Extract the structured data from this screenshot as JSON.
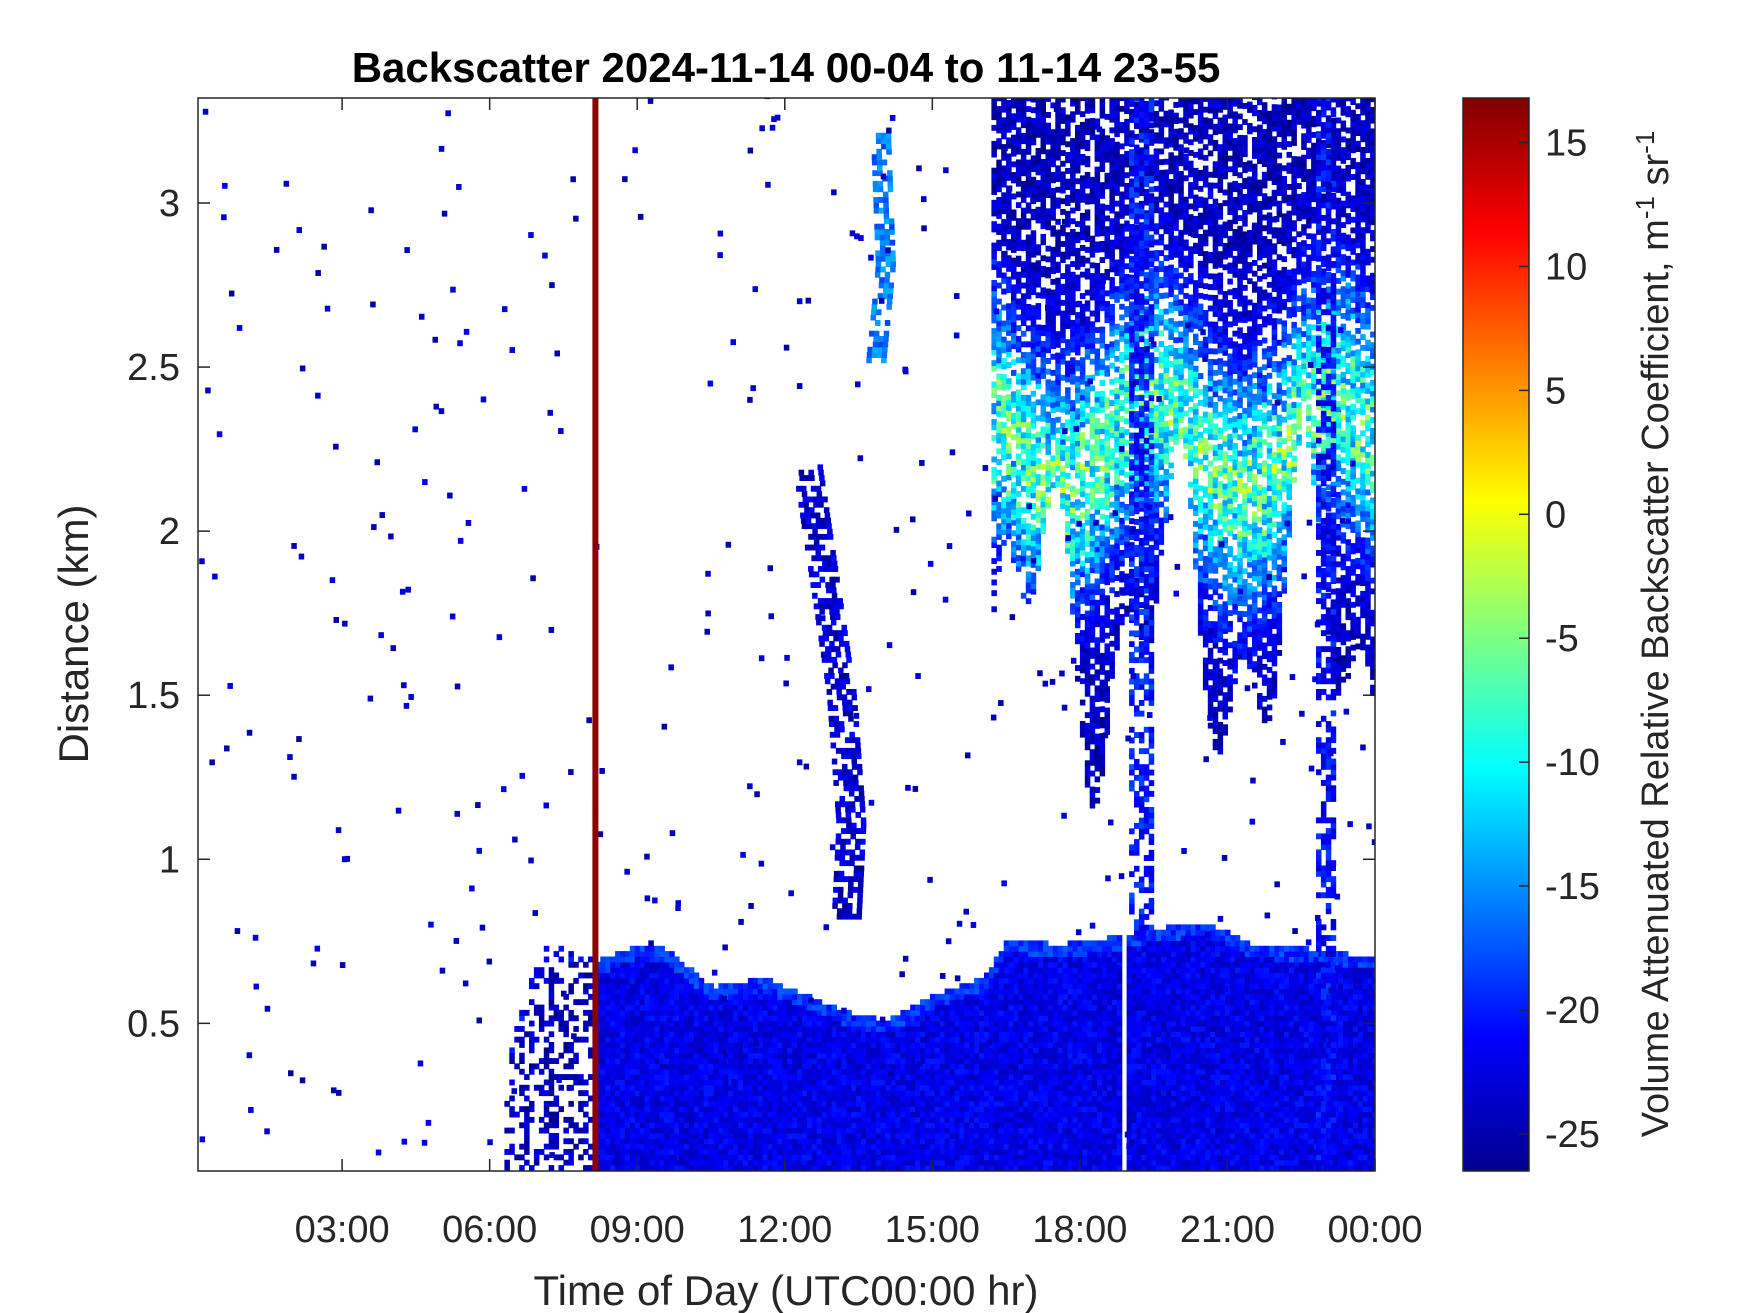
{
  "chart_data": {
    "type": "heatmap",
    "title": "Backscatter 2024-11-14 00-04 to 11-14 23-55",
    "xlabel": "Time of Day (UTC00:00 hr)",
    "ylabel": "Distance (km)",
    "xlim_hours": [
      0.07,
      24.0
    ],
    "ylim_km": [
      0.05,
      3.32
    ],
    "x_ticks": [
      {
        "value": 3,
        "label": "03:00"
      },
      {
        "value": 6,
        "label": "06:00"
      },
      {
        "value": 9,
        "label": "09:00"
      },
      {
        "value": 12,
        "label": "12:00"
      },
      {
        "value": 15,
        "label": "15:00"
      },
      {
        "value": 18,
        "label": "18:00"
      },
      {
        "value": 21,
        "label": "21:00"
      },
      {
        "value": 24,
        "label": "00:00"
      }
    ],
    "y_ticks": [
      {
        "value": 0.5,
        "label": "0.5"
      },
      {
        "value": 1,
        "label": "1"
      },
      {
        "value": 1.5,
        "label": "1.5"
      },
      {
        "value": 2,
        "label": "2"
      },
      {
        "value": 2.5,
        "label": "2.5"
      },
      {
        "value": 3,
        "label": "3"
      }
    ],
    "colorbar": {
      "label_main": "Volume Attenuated Relative Backscatter Coefficient, m",
      "label_sup1": "-1",
      "label_mid": " sr",
      "label_sup2": "-1",
      "range": [
        -26.5,
        16.8
      ],
      "colormap": "jet",
      "ticks": [
        {
          "value": 15,
          "label": "15"
        },
        {
          "value": 10,
          "label": "10"
        },
        {
          "value": 5,
          "label": "5"
        },
        {
          "value": 0,
          "label": "0"
        },
        {
          "value": -5,
          "label": "-5"
        },
        {
          "value": -10,
          "label": "-10"
        },
        {
          "value": -15,
          "label": "-15"
        },
        {
          "value": -20,
          "label": "-20"
        },
        {
          "value": -25,
          "label": "-25"
        }
      ]
    },
    "marker_line": {
      "time_hours": 8.15,
      "color": "#8b0000"
    },
    "layers": [
      {
        "name": "boundary layer",
        "type": "band",
        "t_start": 8.15,
        "t_end": 24.0,
        "top_km": [
          [
            8.15,
            0.68
          ],
          [
            9.0,
            0.73
          ],
          [
            9.5,
            0.72
          ],
          [
            10.5,
            0.6
          ],
          [
            11.5,
            0.63
          ],
          [
            12.5,
            0.57
          ],
          [
            13.3,
            0.52
          ],
          [
            14.0,
            0.5
          ],
          [
            15.0,
            0.58
          ],
          [
            16.0,
            0.63
          ],
          [
            16.5,
            0.75
          ],
          [
            17.5,
            0.73
          ],
          [
            18.5,
            0.75
          ],
          [
            19.5,
            0.78
          ],
          [
            20.5,
            0.8
          ],
          [
            21.5,
            0.73
          ],
          [
            22.5,
            0.72
          ],
          [
            23.5,
            0.7
          ],
          [
            24.0,
            0.7
          ]
        ],
        "value_db": -22
      },
      {
        "name": "scattered aerosol",
        "type": "band",
        "t_start": 6.3,
        "t_end": 8.15,
        "top_km": [
          [
            6.3,
            0.4
          ],
          [
            7.0,
            0.72
          ],
          [
            8.15,
            0.72
          ]
        ],
        "value_db": -24,
        "sparse": true
      },
      {
        "name": "rising plume",
        "type": "streak",
        "points_km": [
          [
            12.4,
            2.2
          ],
          [
            12.8,
            1.8
          ],
          [
            13.1,
            1.5
          ],
          [
            13.3,
            1.1
          ],
          [
            13.2,
            0.8
          ]
        ],
        "width_hours": 0.5,
        "value_db": -23
      },
      {
        "name": "upper streak",
        "type": "streak",
        "points_km": [
          [
            13.9,
            3.2
          ],
          [
            14.0,
            2.8
          ],
          [
            13.8,
            2.5
          ]
        ],
        "width_hours": 0.3,
        "value_db": -16
      },
      {
        "name": "upper cloud deck",
        "type": "cloud",
        "t_start": 16.2,
        "t_end": 24.0,
        "bottom_km": 1.7,
        "top_km": 3.32,
        "peak_db": -5
      },
      {
        "name": "precip shaft 19h",
        "type": "column",
        "t_start": 19.0,
        "t_end": 19.5,
        "bottom_km": 0.75,
        "top_km": 3.32,
        "value_db": -20
      },
      {
        "name": "precip shaft 23h",
        "type": "column",
        "t_start": 22.8,
        "t_end": 23.2,
        "bottom_km": 0.05,
        "top_km": 3.32,
        "value_db": -21
      }
    ]
  }
}
